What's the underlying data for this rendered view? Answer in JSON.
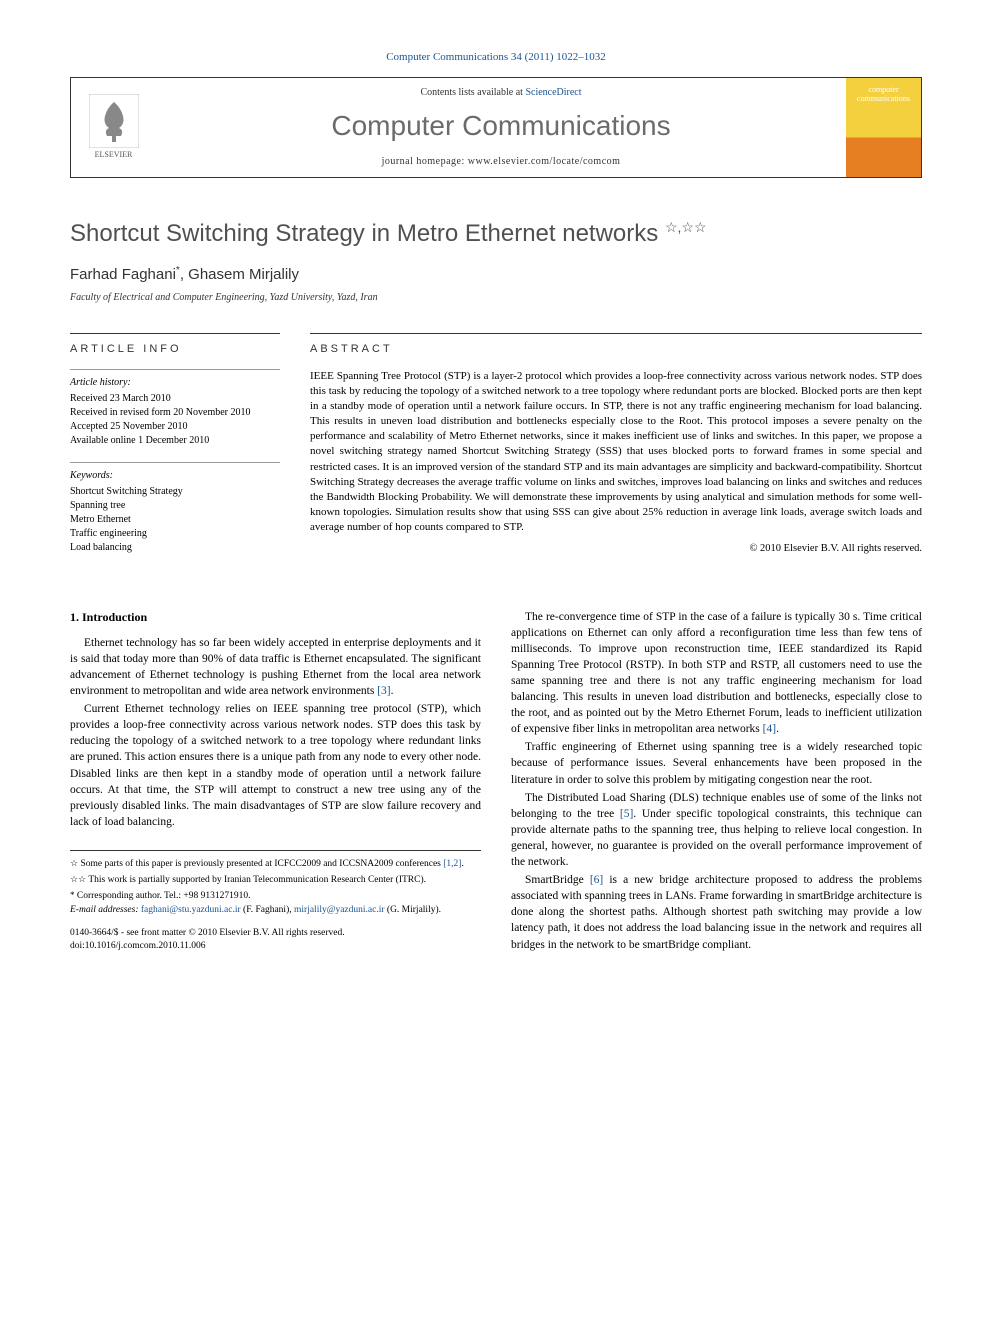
{
  "citation": "Computer Communications 34 (2011) 1022–1032",
  "header": {
    "contents_prefix": "Contents lists available at ",
    "contents_link": "ScienceDirect",
    "journal": "Computer Communications",
    "homepage_prefix": "journal homepage: ",
    "homepage_url": "www.elsevier.com/locate/comcom",
    "publisher_label": "ELSEVIER",
    "cover_label": "computer communications"
  },
  "title": "Shortcut Switching Strategy in Metro Ethernet networks",
  "title_marks": "☆,☆☆",
  "authors": [
    {
      "name": "Farhad Faghani",
      "mark": "*"
    },
    {
      "name": "Ghasem Mirjalily",
      "mark": ""
    }
  ],
  "author_line_sep": ", ",
  "affiliation": "Faculty of Electrical and Computer Engineering, Yazd University, Yazd, Iran",
  "info": {
    "label": "ARTICLE INFO",
    "history_head": "Article history:",
    "history": [
      "Received 23 March 2010",
      "Received in revised form 20 November 2010",
      "Accepted 25 November 2010",
      "Available online 1 December 2010"
    ],
    "keywords_head": "Keywords:",
    "keywords": [
      "Shortcut Switching Strategy",
      "Spanning tree",
      "Metro Ethernet",
      "Traffic engineering",
      "Load balancing"
    ]
  },
  "abstract": {
    "label": "ABSTRACT",
    "text": "IEEE Spanning Tree Protocol (STP) is a layer-2 protocol which provides a loop-free connectivity across various network nodes. STP does this task by reducing the topology of a switched network to a tree topology where redundant ports are blocked. Blocked ports are then kept in a standby mode of operation until a network failure occurs. In STP, there is not any traffic engineering mechanism for load balancing. This results in uneven load distribution and bottlenecks especially close to the Root. This protocol imposes a severe penalty on the performance and scalability of Metro Ethernet networks, since it makes inefficient use of links and switches. In this paper, we propose a novel switching strategy named Shortcut Switching Strategy (SSS) that uses blocked ports to forward frames in some special and restricted cases. It is an improved version of the standard STP and its main advantages are simplicity and backward-compatibility. Shortcut Switching Strategy decreases the average traffic volume on links and switches, improves load balancing on links and switches and reduces the Bandwidth Blocking Probability. We will demonstrate these improvements by using analytical and simulation methods for some well-known topologies. Simulation results show that using SSS can give about 25% reduction in average link loads, average switch loads and average number of hop counts compared to STP.",
    "copyright": "© 2010 Elsevier B.V. All rights reserved."
  },
  "body": {
    "section_num": "1.",
    "section_title": "Introduction",
    "left": [
      "Ethernet technology has so far been widely accepted in enterprise deployments and it is said that today more than 90% of data traffic is Ethernet encapsulated. The significant advancement of Ethernet technology is pushing Ethernet from the local area network environment to metropolitan and wide area network environments [3].",
      "Current Ethernet technology relies on IEEE spanning tree protocol (STP), which provides a loop-free connectivity across various network nodes. STP does this task by reducing the topology of a switched network to a tree topology where redundant links are pruned. This action ensures there is a unique path from any node to every other node. Disabled links are then kept in a standby mode of operation until a network failure occurs. At that time, the STP will attempt to construct a new tree using any of the previously disabled links. The main disadvantages of STP are slow failure recovery and lack of load balancing."
    ],
    "right": [
      "The re-convergence time of STP in the case of a failure is typically 30 s. Time critical applications on Ethernet can only afford a reconfiguration time less than few tens of milliseconds. To improve upon reconstruction time, IEEE standardized its Rapid Spanning Tree Protocol (RSTP). In both STP and RSTP, all customers need to use the same spanning tree and there is not any traffic engineering mechanism for load balancing. This results in uneven load distribution and bottlenecks, especially close to the root, and as pointed out by the Metro Ethernet Forum, leads to inefficient utilization of expensive fiber links in metropolitan area networks [4].",
      "Traffic engineering of Ethernet using spanning tree is a widely researched topic because of performance issues. Several enhancements have been proposed in the literature in order to solve this problem by mitigating congestion near the root.",
      "The Distributed Load Sharing (DLS) technique enables use of some of the links not belonging to the tree [5]. Under specific topological constraints, this technique can provide alternate paths to the spanning tree, thus helping to relieve local congestion. In general, however, no guarantee is provided on the overall performance improvement of the network.",
      "SmartBridge [6] is a new bridge architecture proposed to address the problems associated with spanning trees in LANs. Frame forwarding in smartBridge architecture is done along the shortest paths. Although shortest path switching may provide a low latency path, it does not address the load balancing issue in the network and requires all bridges in the network to be smartBridge compliant."
    ]
  },
  "footnotes": {
    "n1_mark": "☆",
    "n1": "Some parts of this paper is previously presented at ICFCC2009 and ICCSNA2009 conferences [1,2].",
    "n2_mark": "☆☆",
    "n2": "This work is partially supported by Iranian Telecommunication Research Center (ITRC).",
    "corr_mark": "*",
    "corr": "Corresponding author. Tel.: +98 9131271910.",
    "email_label": "E-mail addresses:",
    "email1": "faghani@stu.yazduni.ac.ir",
    "email1_who": "(F. Faghani),",
    "email2": "mirjalily@yazduni.ac.ir",
    "email2_who": "(G. Mirjalily)."
  },
  "footer": {
    "issn": "0140-3664/$ - see front matter © 2010 Elsevier B.V. All rights reserved.",
    "doi": "doi:10.1016/j.comcom.2010.11.006"
  },
  "colors": {
    "link": "#1a5490",
    "title_gray": "#505050",
    "journal_gray": "#6b6b6b"
  }
}
